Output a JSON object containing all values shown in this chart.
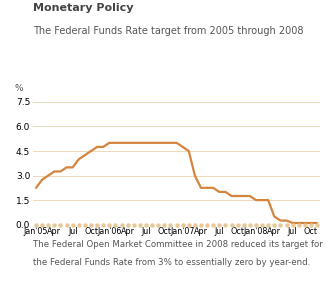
{
  "title": "Monetary Policy",
  "subtitle": "The Federal Funds Rate target from 2005 through 2008",
  "ylabel": "%",
  "ylim": [
    0.0,
    8.8
  ],
  "yticks": [
    0.0,
    1.5,
    3.0,
    4.5,
    6.0,
    7.5
  ],
  "line_color": "#D4843E",
  "grid_color": "#ECD9B8",
  "dot_color": "#E8C898",
  "background_color": "#FFFFFF",
  "annotation_line1": "The Federal Open Market Committee in 2008 reduced its target for",
  "annotation_line2": "the Federal Funds Rate from 3% to essentially zero by year-end.",
  "x_values": [
    0,
    1,
    2,
    3,
    4,
    5,
    6,
    7,
    8,
    9,
    10,
    11,
    12,
    13,
    14,
    15,
    16,
    17,
    18,
    19,
    20,
    21,
    22,
    23,
    24,
    25,
    26,
    27,
    28,
    29,
    30,
    31,
    32,
    33,
    34,
    35,
    36,
    37,
    38,
    39,
    40,
    41,
    42,
    43,
    44,
    45,
    46
  ],
  "y_values": [
    2.25,
    2.75,
    3.0,
    3.25,
    3.25,
    3.5,
    3.5,
    4.0,
    4.25,
    4.5,
    4.75,
    4.75,
    5.0,
    5.0,
    5.0,
    5.0,
    5.0,
    5.0,
    5.0,
    5.0,
    5.0,
    5.0,
    5.0,
    5.0,
    4.75,
    4.5,
    3.0,
    2.25,
    2.25,
    2.25,
    2.0,
    2.0,
    1.75,
    1.75,
    1.75,
    1.75,
    1.5,
    1.5,
    1.5,
    0.5,
    0.25,
    0.25,
    0.1,
    0.1,
    0.1,
    0.1,
    0.1
  ],
  "xtick_labels": [
    "Jan'05",
    "Apr",
    "Jul",
    "Oct",
    "Jan'06",
    "Apr",
    "Jul",
    "Oct",
    "Jan'07",
    "Apr",
    "Jul",
    "Oct",
    "Jan'08",
    "Apr",
    "Jul",
    "Oct"
  ],
  "xtick_positions": [
    0,
    3,
    6,
    9,
    12,
    15,
    18,
    21,
    24,
    27,
    30,
    33,
    36,
    39,
    42,
    45
  ],
  "title_fontsize": 8.0,
  "subtitle_fontsize": 7.0,
  "ylabel_fontsize": 6.5,
  "ytick_fontsize": 6.5,
  "xtick_fontsize": 5.8,
  "annotation_fontsize": 6.2,
  "title_color": "#444444",
  "subtitle_color": "#555555",
  "annotation_color": "#555555"
}
